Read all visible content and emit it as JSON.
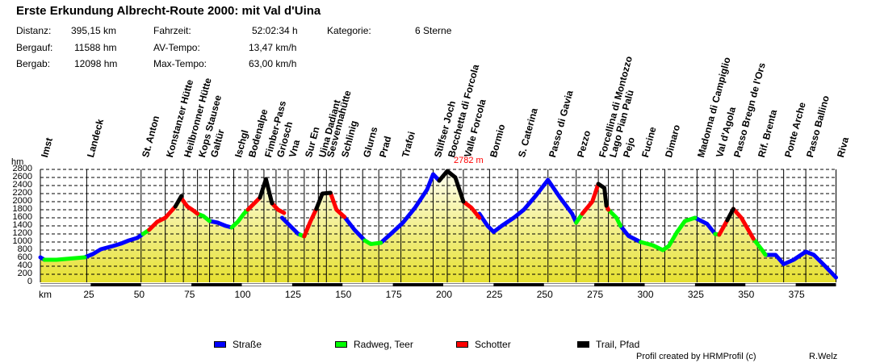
{
  "title": "Erste Erkundung Albrecht-Route 2000: mit Val d'Uina",
  "stats": {
    "distanz_label": "Distanz:",
    "distanz_value": "395,15 km",
    "bergauf_label": "Bergauf:",
    "bergauf_value": "11588 hm",
    "bergab_label": "Bergab:",
    "bergab_value": "12098 hm",
    "fahrzeit_label": "Fahrzeit:",
    "fahrzeit_value": "52:02:34 h",
    "avtempo_label": "AV-Tempo:",
    "avtempo_value": "13,47 km/h",
    "maxtempo_label": "Max-Tempo:",
    "maxtempo_value": "63,00 km/h",
    "kategorie_label": "Kategorie:",
    "kategorie_value": "6 Sterne"
  },
  "legend": [
    {
      "label": "Straße",
      "color": "#0000ff"
    },
    {
      "label": "Radweg, Teer",
      "color": "#00ff00"
    },
    {
      "label": "Schotter",
      "color": "#ff0000"
    },
    {
      "label": "Trail, Pfad",
      "color": "#000000"
    }
  ],
  "footer": {
    "credit": "Profil created by HRMProfil (c)",
    "author": "R.Welz"
  },
  "max_label": "2782 m",
  "chart_data": {
    "type": "line",
    "title": "Erste Erkundung Albrecht-Route 2000: mit Val d'Uina",
    "xlabel": "km",
    "ylabel": "hm",
    "xlim": [
      0,
      395
    ],
    "ylim": [
      0,
      2800
    ],
    "grid": true,
    "y_ticks": [
      0,
      200,
      400,
      600,
      800,
      1000,
      1200,
      1400,
      1600,
      1800,
      2000,
      2200,
      2400,
      2600,
      2800
    ],
    "x_ticks": [
      25,
      50,
      75,
      100,
      125,
      150,
      175,
      200,
      225,
      250,
      275,
      300,
      325,
      350,
      375
    ],
    "annotations": [
      {
        "text": "2782 m",
        "x": 202,
        "y": 2782
      }
    ],
    "waypoints": [
      {
        "name": "Imst",
        "km": 0
      },
      {
        "name": "Landeck",
        "km": 23
      },
      {
        "name": "St. Anton",
        "km": 50
      },
      {
        "name": "Konstanzer Hütte",
        "km": 62
      },
      {
        "name": "Heilbronner Hütte",
        "km": 71
      },
      {
        "name": "Kops Stausee",
        "km": 78
      },
      {
        "name": "Galtür",
        "km": 84
      },
      {
        "name": "Ischgl",
        "km": 96
      },
      {
        "name": "Bodenalpe",
        "km": 103
      },
      {
        "name": "Fimber-Pass",
        "km": 111
      },
      {
        "name": "Griosch",
        "km": 117
      },
      {
        "name": "Vna",
        "km": 123
      },
      {
        "name": "Sur En",
        "km": 131
      },
      {
        "name": "Uina Dadiant",
        "km": 138
      },
      {
        "name": "Sesvennahütte",
        "km": 142
      },
      {
        "name": "Schlinig",
        "km": 149
      },
      {
        "name": "Glurns",
        "km": 160
      },
      {
        "name": "Prad",
        "km": 168
      },
      {
        "name": "Trafoi",
        "km": 179
      },
      {
        "name": "Stilfser Joch",
        "km": 195
      },
      {
        "name": "Bocchetta di Forcola",
        "km": 202
      },
      {
        "name": "Valle Forcola",
        "km": 210
      },
      {
        "name": "Bormio",
        "km": 223
      },
      {
        "name": "S. Caterina",
        "km": 237
      },
      {
        "name": "Passo di Gavia",
        "km": 252
      },
      {
        "name": "Pezzo",
        "km": 266
      },
      {
        "name": "Forcellina di Montozzo",
        "km": 277
      },
      {
        "name": "Lago Pian Palù",
        "km": 282
      },
      {
        "name": "Pejo",
        "km": 289
      },
      {
        "name": "Fucine",
        "km": 298
      },
      {
        "name": "Dimaro",
        "km": 310
      },
      {
        "name": "Madonna di Campiglio",
        "km": 326
      },
      {
        "name": "Val d'Agola",
        "km": 335
      },
      {
        "name": "Passo Bregn de l'Ors",
        "km": 344
      },
      {
        "name": "Rif. Brenta",
        "km": 356
      },
      {
        "name": "Ponte Arche",
        "km": 369
      },
      {
        "name": "Passo Ballino",
        "km": 380
      },
      {
        "name": "Riva",
        "km": 395
      }
    ],
    "series": [
      {
        "name": "Straße",
        "color": "#0000ff",
        "segments": [
          [
            [
              0,
              620
            ],
            [
              2,
              560
            ]
          ],
          [
            [
              22,
              620
            ],
            [
              26,
              700
            ],
            [
              30,
              820
            ],
            [
              36,
              900
            ],
            [
              40,
              960
            ],
            [
              44,
              1040
            ],
            [
              48,
              1100
            ],
            [
              51,
              1200
            ]
          ],
          [
            [
              84,
              1520
            ],
            [
              88,
              1480
            ],
            [
              92,
              1400
            ],
            [
              95,
              1360
            ]
          ],
          [
            [
              120,
              1600
            ],
            [
              124,
              1400
            ],
            [
              128,
              1200
            ],
            [
              129,
              1180
            ]
          ],
          [
            [
              151,
              1620
            ],
            [
              156,
              1300
            ],
            [
              161,
              1040
            ]
          ],
          [
            [
              169,
              980
            ],
            [
              174,
              1200
            ],
            [
              180,
              1480
            ],
            [
              186,
              1850
            ],
            [
              192,
              2300
            ],
            [
              195,
              2680
            ],
            [
              198,
              2520
            ]
          ],
          [
            [
              218,
              1700
            ],
            [
              222,
              1400
            ],
            [
              225,
              1250
            ],
            [
              229,
              1400
            ],
            [
              235,
              1600
            ],
            [
              240,
              1800
            ],
            [
              246,
              2150
            ],
            [
              252,
              2540
            ],
            [
              258,
              2100
            ],
            [
              264,
              1700
            ],
            [
              266,
              1480
            ]
          ],
          [
            [
              288,
              1400
            ],
            [
              292,
              1150
            ],
            [
              298,
              1000
            ]
          ],
          [
            [
              325,
              1600
            ],
            [
              331,
              1450
            ],
            [
              335,
              1200
            ]
          ],
          [
            [
              360,
              680
            ],
            [
              365,
              680
            ],
            [
              369,
              450
            ],
            [
              374,
              560
            ],
            [
              380,
              760
            ],
            [
              384,
              680
            ],
            [
              390,
              380
            ],
            [
              395,
              120
            ]
          ]
        ]
      },
      {
        "name": "Radweg, Teer",
        "color": "#00ff00",
        "segments": [
          [
            [
              2,
              560
            ],
            [
              8,
              560
            ],
            [
              15,
              590
            ],
            [
              22,
              620
            ]
          ],
          [
            [
              51,
              1200
            ],
            [
              54,
              1300
            ]
          ],
          [
            [
              78,
              1700
            ],
            [
              81,
              1640
            ],
            [
              84,
              1520
            ]
          ],
          [
            [
              95,
              1360
            ],
            [
              98,
              1500
            ],
            [
              101,
              1700
            ],
            [
              103,
              1800
            ]
          ],
          [
            [
              129,
              1180
            ],
            [
              131,
              1140
            ]
          ],
          [
            [
              161,
              1040
            ],
            [
              164,
              950
            ],
            [
              169,
              980
            ]
          ],
          [
            [
              266,
              1480
            ],
            [
              269,
              1700
            ]
          ],
          [
            [
              282,
              1800
            ],
            [
              286,
              1600
            ],
            [
              288,
              1400
            ]
          ],
          [
            [
              298,
              1000
            ],
            [
              304,
              920
            ],
            [
              309,
              800
            ],
            [
              312,
              900
            ],
            [
              316,
              1240
            ],
            [
              320,
              1520
            ],
            [
              325,
              1600
            ]
          ],
          [
            [
              335,
              1200
            ],
            [
              337,
              1180
            ]
          ],
          [
            [
              354,
              1080
            ],
            [
              358,
              820
            ],
            [
              360,
              680
            ]
          ]
        ]
      },
      {
        "name": "Schotter",
        "color": "#ff0000",
        "segments": [
          [
            [
              54,
              1300
            ],
            [
              58,
              1500
            ],
            [
              62,
              1600
            ],
            [
              67,
              1880
            ]
          ],
          [
            [
              70,
              2080
            ],
            [
              73,
              1880
            ],
            [
              76,
              1780
            ],
            [
              78,
              1700
            ]
          ],
          [
            [
              103,
              1800
            ],
            [
              107,
              2000
            ],
            [
              109,
              2100
            ]
          ],
          [
            [
              115,
              1960
            ],
            [
              118,
              1800
            ],
            [
              121,
              1720
            ]
          ],
          [
            [
              131,
              1140
            ],
            [
              134,
              1500
            ],
            [
              137,
              1820
            ]
          ],
          [
            [
              144,
              2220
            ],
            [
              147,
              1800
            ],
            [
              151,
              1620
            ]
          ],
          [
            [
              210,
              2000
            ],
            [
              214,
              1850
            ],
            [
              218,
              1600
            ]
          ],
          [
            [
              269,
              1700
            ],
            [
              274,
              2000
            ],
            [
              277,
              2440
            ]
          ],
          [
            [
              281,
              1900
            ],
            [
              282,
              1800
            ]
          ],
          [
            [
              337,
              1180
            ],
            [
              341,
              1540
            ]
          ],
          [
            [
              344,
              1820
            ],
            [
              348,
              1600
            ],
            [
              354,
              1080
            ]
          ]
        ]
      },
      {
        "name": "Trail, Pfad",
        "color": "#000000",
        "segments": [
          [
            [
              67,
              1880
            ],
            [
              70,
              2140
            ]
          ],
          [
            [
              109,
              2100
            ],
            [
              112,
              2560
            ],
            [
              115,
              1960
            ]
          ],
          [
            [
              137,
              1820
            ],
            [
              140,
              2200
            ],
            [
              144,
              2220
            ]
          ],
          [
            [
              198,
              2520
            ],
            [
              202,
              2760
            ],
            [
              206,
              2600
            ],
            [
              210,
              2000
            ]
          ],
          [
            [
              277,
              2440
            ],
            [
              280,
              2340
            ],
            [
              281,
              1900
            ]
          ],
          [
            [
              341,
              1540
            ],
            [
              344,
              1820
            ]
          ]
        ]
      }
    ]
  }
}
